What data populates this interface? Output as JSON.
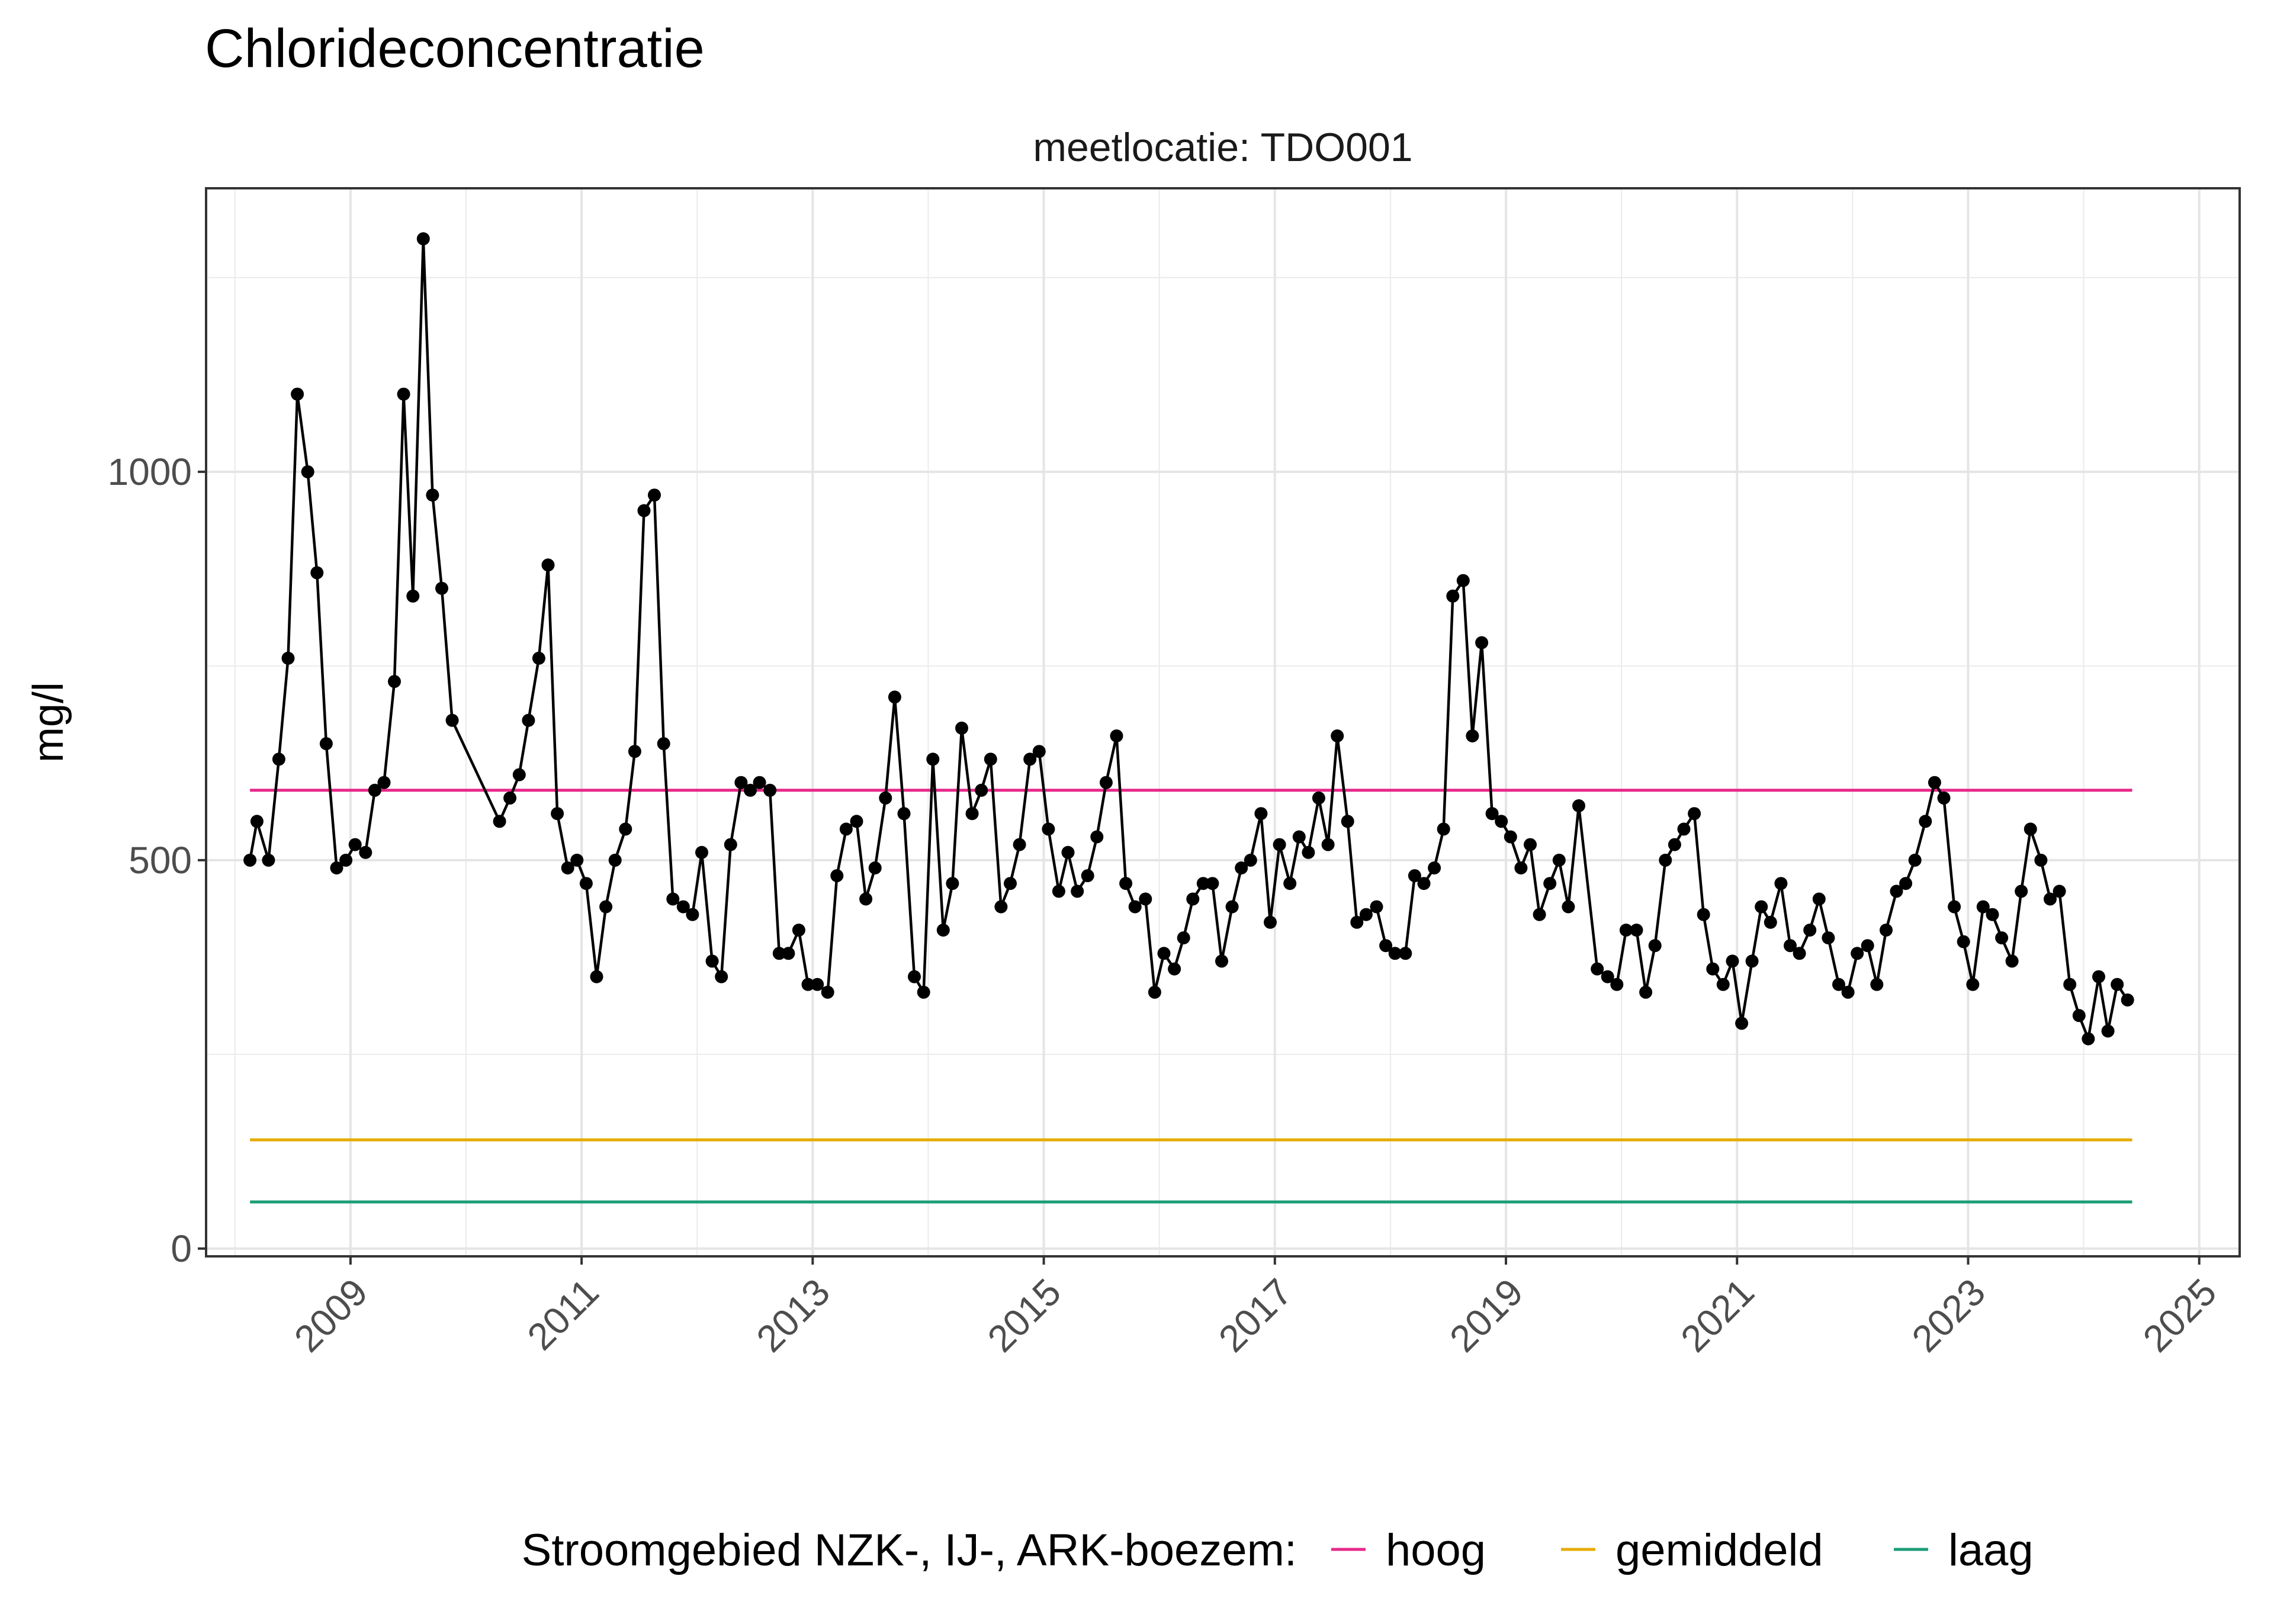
{
  "chart_data": {
    "type": "line",
    "title": "Chlorideconcentratie",
    "facet_label": "meetlocatie: TDO001",
    "xlabel": "",
    "ylabel": "mg/l",
    "xlim": [
      2007.75,
      2025.35
    ],
    "ylim": [
      -10,
      1365
    ],
    "x_ticks": [
      "2009",
      "2011",
      "2013",
      "2015",
      "2017",
      "2019",
      "2021",
      "2023",
      "2025"
    ],
    "y_ticks": [
      "0",
      "500",
      "1000"
    ],
    "grid": true,
    "legend": {
      "title": "Stroomgebied NZK-, IJ-, ARK-boezem:",
      "position": "bottom",
      "entries": [
        {
          "label": "hoog",
          "color": "#e7298a"
        },
        {
          "label": "gemiddeld",
          "color": "#e6ab02"
        },
        {
          "label": "laag",
          "color": "#1b9e77"
        }
      ]
    },
    "reference_lines": [
      {
        "name": "hoog",
        "value": 590,
        "color": "#e7298a",
        "x_range": [
          2008.13,
          2024.42
        ]
      },
      {
        "name": "gemiddeld",
        "value": 140,
        "color": "#e6ab02",
        "x_range": [
          2008.13,
          2024.42
        ]
      },
      {
        "name": "laag",
        "value": 60,
        "color": "#1b9e77",
        "x_range": [
          2008.13,
          2024.42
        ]
      }
    ],
    "series": [
      {
        "color": "#000000",
        "x": [
          2008.13,
          2008.19,
          2008.29,
          2008.38,
          2008.46,
          2008.54,
          2008.63,
          2008.71,
          2008.79,
          2008.88,
          2008.96,
          2009.04,
          2009.13,
          2009.21,
          2009.29,
          2009.38,
          2009.46,
          2009.54,
          2009.63,
          2009.71,
          2009.79,
          2009.88,
          2010.29,
          2010.38,
          2010.46,
          2010.54,
          2010.63,
          2010.71,
          2010.79,
          2010.88,
          2010.96,
          2011.04,
          2011.13,
          2011.21,
          2011.29,
          2011.38,
          2011.46,
          2011.54,
          2011.63,
          2011.71,
          2011.79,
          2011.88,
          2011.96,
          2012.04,
          2012.13,
          2012.21,
          2012.29,
          2012.38,
          2012.46,
          2012.54,
          2012.63,
          2012.71,
          2012.79,
          2012.88,
          2012.96,
          2013.04,
          2013.13,
          2013.21,
          2013.29,
          2013.38,
          2013.46,
          2013.54,
          2013.63,
          2013.71,
          2013.79,
          2013.88,
          2013.96,
          2014.04,
          2014.13,
          2014.21,
          2014.29,
          2014.38,
          2014.46,
          2014.54,
          2014.63,
          2014.71,
          2014.79,
          2014.88,
          2014.96,
          2015.04,
          2015.13,
          2015.21,
          2015.29,
          2015.38,
          2015.46,
          2015.54,
          2015.63,
          2015.71,
          2015.79,
          2015.88,
          2015.96,
          2016.04,
          2016.13,
          2016.21,
          2016.29,
          2016.38,
          2016.46,
          2016.54,
          2016.63,
          2016.71,
          2016.79,
          2016.88,
          2016.96,
          2017.04,
          2017.13,
          2017.21,
          2017.29,
          2017.38,
          2017.46,
          2017.54,
          2017.63,
          2017.71,
          2017.79,
          2017.88,
          2017.96,
          2018.04,
          2018.13,
          2018.21,
          2018.29,
          2018.38,
          2018.46,
          2018.54,
          2018.63,
          2018.71,
          2018.79,
          2018.88,
          2018.96,
          2019.04,
          2019.13,
          2019.21,
          2019.29,
          2019.38,
          2019.46,
          2019.54,
          2019.63,
          2019.79,
          2019.88,
          2019.96,
          2020.04,
          2020.13,
          2020.21,
          2020.29,
          2020.38,
          2020.46,
          2020.54,
          2020.63,
          2020.71,
          2020.79,
          2020.88,
          2020.96,
          2021.04,
          2021.13,
          2021.21,
          2021.29,
          2021.38,
          2021.46,
          2021.54,
          2021.63,
          2021.71,
          2021.79,
          2021.88,
          2021.96,
          2022.04,
          2022.13,
          2022.21,
          2022.29,
          2022.38,
          2022.46,
          2022.54,
          2022.63,
          2022.71,
          2022.79,
          2022.88,
          2022.96,
          2023.04,
          2023.13,
          2023.21,
          2023.29,
          2023.38,
          2023.46,
          2023.54,
          2023.63,
          2023.71,
          2023.79,
          2023.88,
          2023.96,
          2024.04,
          2024.13,
          2024.21,
          2024.29,
          2024.38
        ],
        "y": [
          500,
          550,
          500,
          630,
          760,
          1100,
          1000,
          870,
          650,
          490,
          500,
          520,
          510,
          590,
          600,
          730,
          1100,
          840,
          1300,
          970,
          850,
          680,
          550,
          580,
          610,
          680,
          760,
          880,
          560,
          490,
          500,
          470,
          350,
          440,
          500,
          540,
          640,
          950,
          970,
          650,
          450,
          440,
          430,
          510,
          370,
          350,
          520,
          600,
          590,
          600,
          590,
          380,
          380,
          410,
          340,
          340,
          330,
          480,
          540,
          550,
          450,
          490,
          580,
          710,
          560,
          350,
          330,
          630,
          410,
          470,
          670,
          560,
          590,
          630,
          440,
          470,
          520,
          630,
          640,
          540,
          460,
          510,
          460,
          480,
          530,
          600,
          660,
          470,
          440,
          450,
          330,
          380,
          360,
          400,
          450,
          470,
          470,
          370,
          440,
          490,
          500,
          560,
          420,
          520,
          470,
          530,
          510,
          580,
          520,
          660,
          550,
          420,
          430,
          440,
          390,
          380,
          380,
          480,
          470,
          490,
          540,
          840,
          860,
          660,
          780,
          560,
          550,
          530,
          490,
          520,
          430,
          470,
          500,
          440,
          570,
          360,
          350,
          340,
          410,
          410,
          330,
          390,
          500,
          520,
          540,
          560,
          430,
          360,
          340,
          370,
          290,
          370,
          440,
          420,
          470,
          390,
          380,
          410,
          450,
          400,
          340,
          330,
          380,
          390,
          340,
          410,
          460,
          470,
          500,
          550,
          600,
          580,
          440,
          395,
          340,
          440,
          430,
          400,
          370,
          460,
          540,
          500,
          450,
          460,
          340,
          300,
          270,
          350,
          280,
          340,
          320
        ]
      }
    ]
  }
}
